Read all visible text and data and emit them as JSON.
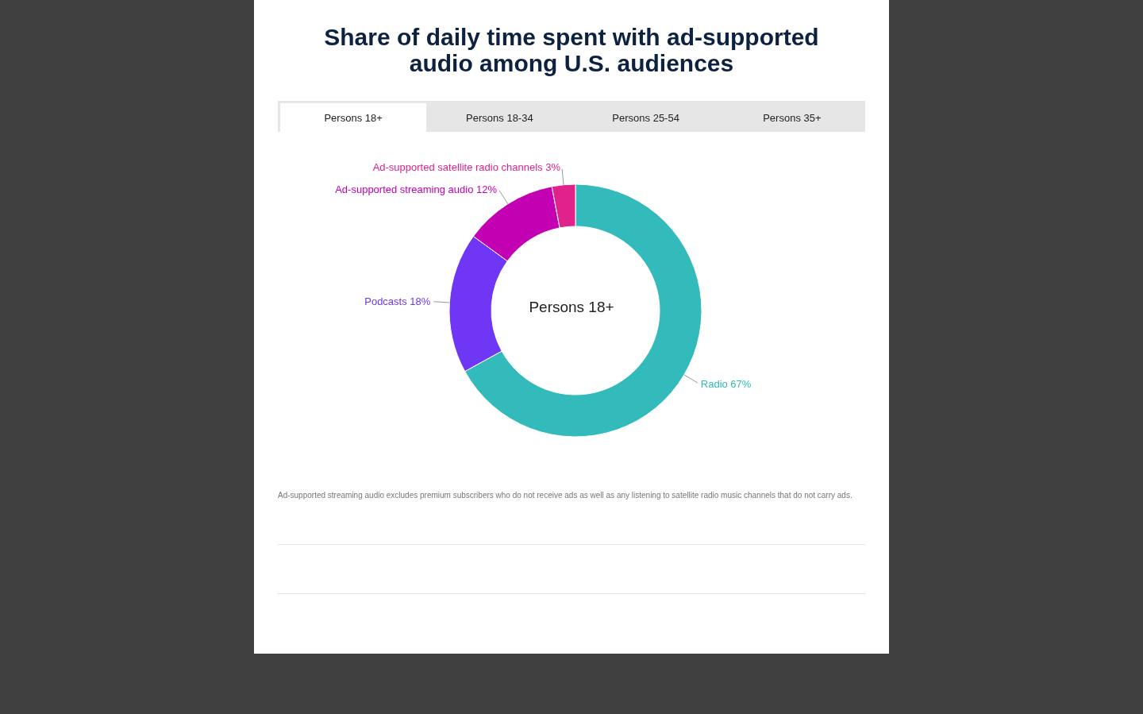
{
  "chart_data": {
    "type": "donut",
    "title": "Share of daily time spent with ad-supported audio among U.S. audiences",
    "categories": [
      "Radio",
      "Podcasts",
      "Ad-supported streaming audio",
      "Ad-supported satellite radio channels"
    ],
    "values": [
      67,
      18,
      12,
      3
    ],
    "value_labels": [
      "67%",
      "18%",
      "12%",
      "3%"
    ],
    "colors": [
      "#33baba",
      "#6f36f5",
      "#c300b2",
      "#e2228c"
    ],
    "annotations": [
      "Persons 18+",
      "Persons 18-34",
      "Persons 25-54",
      "Persons 35+",
      "Persons 18+",
      "Ad-supported streaming audio excludes premium subscribers who do not receive ads as well as any listening to satellite radio music channels that do not carry ads."
    ]
  }
}
